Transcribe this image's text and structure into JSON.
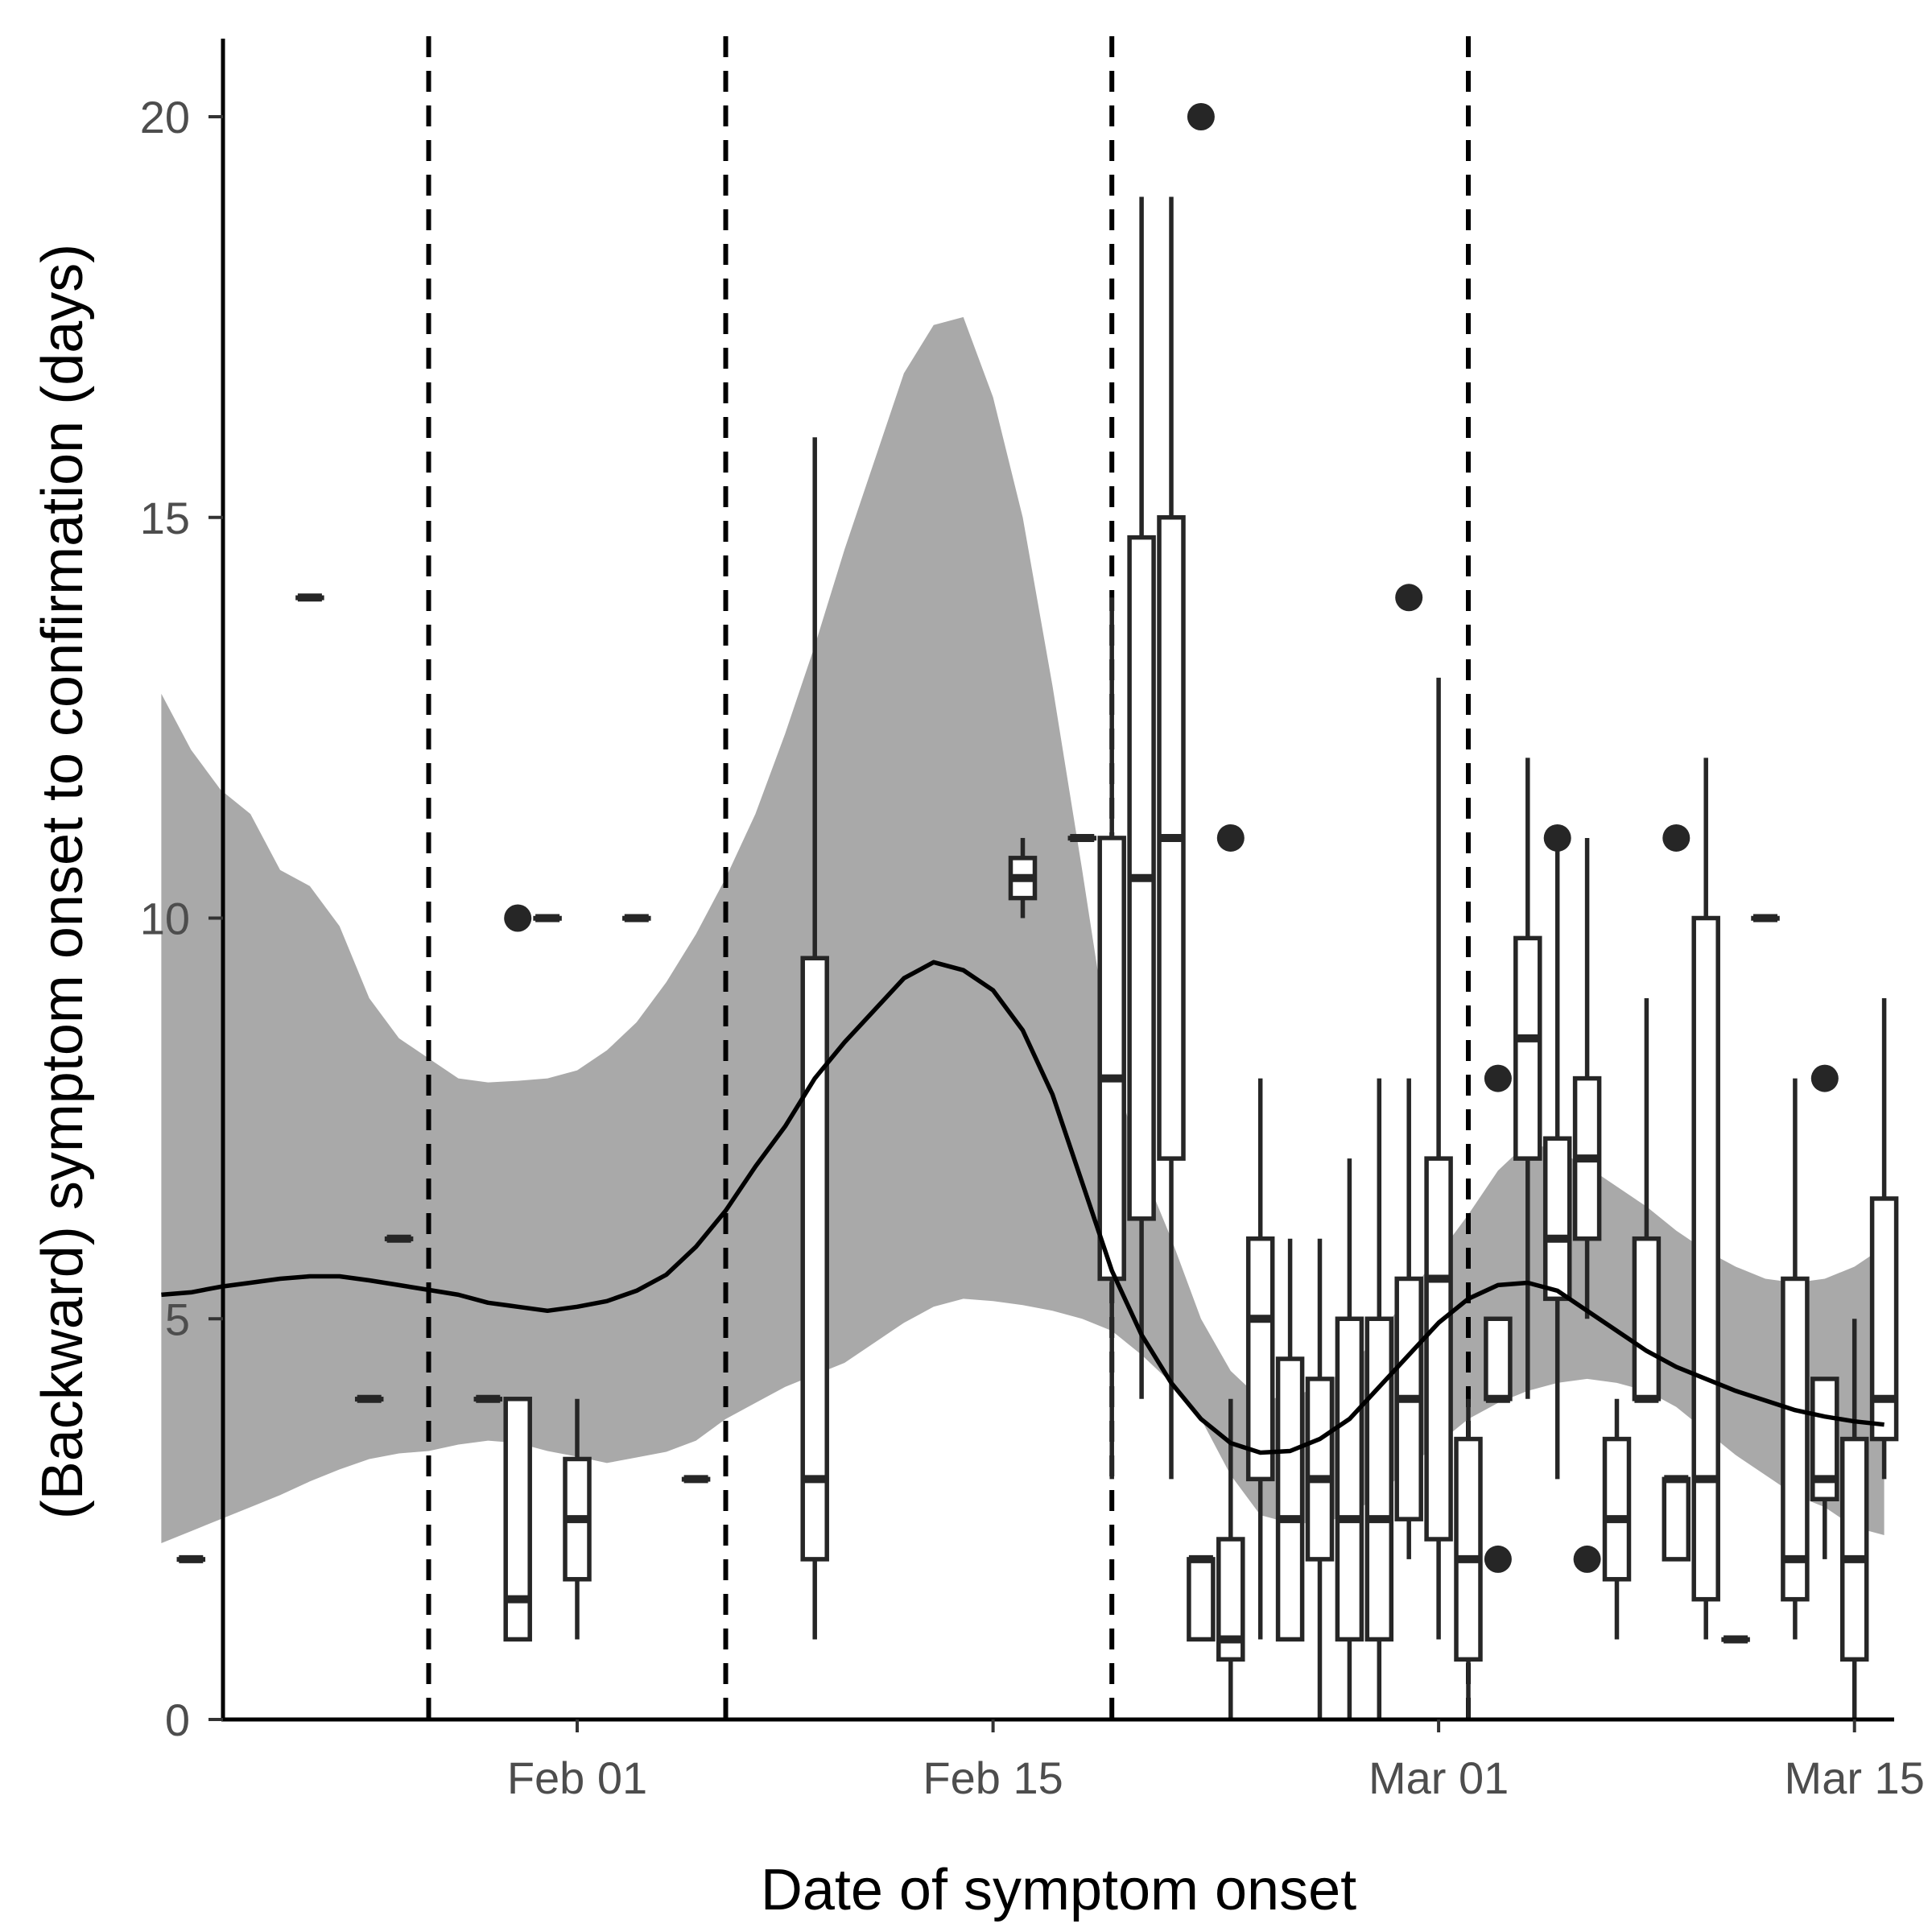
{
  "chart_data": {
    "type": "boxplot",
    "title": "",
    "xlabel": "Date of symptom onset",
    "ylabel": "(Backward) symptom onset to confirmation (days)",
    "xlim": [
      "2020-01-18",
      "2020-03-16"
    ],
    "ylim": [
      0,
      21
    ],
    "x_ticks": [
      {
        "date": "2020-02-01",
        "label": "Feb 01"
      },
      {
        "date": "2020-02-15",
        "label": "Feb 15"
      },
      {
        "date": "2020-03-01",
        "label": "Mar 01"
      },
      {
        "date": "2020-03-15",
        "label": "Mar 15"
      }
    ],
    "y_ticks": [
      {
        "value": 0,
        "label": "0"
      },
      {
        "value": 5,
        "label": "5"
      },
      {
        "value": 10,
        "label": "10"
      },
      {
        "value": 15,
        "label": "15"
      },
      {
        "value": 20,
        "label": "20"
      }
    ],
    "grid": false,
    "vlines": [
      "2020-01-27",
      "2020-02-06",
      "2020-02-19",
      "2020-03-02"
    ],
    "boxes": [
      {
        "date": "2020-01-19",
        "lo": 2,
        "q1": 2,
        "med": 2,
        "q3": 2,
        "hi": 2
      },
      {
        "date": "2020-01-23",
        "lo": 14,
        "q1": 14,
        "med": 14,
        "q3": 14,
        "hi": 14
      },
      {
        "date": "2020-01-25",
        "lo": 4,
        "q1": 4,
        "med": 4,
        "q3": 4,
        "hi": 4
      },
      {
        "date": "2020-01-26",
        "lo": 6,
        "q1": 6,
        "med": 6,
        "q3": 6,
        "hi": 6
      },
      {
        "date": "2020-01-29",
        "lo": 4,
        "q1": 4,
        "med": 4,
        "q3": 4,
        "hi": 4
      },
      {
        "date": "2020-01-30",
        "lo": 1,
        "q1": 1,
        "med": 1.5,
        "q3": 4,
        "hi": 4,
        "outliers": [
          10
        ]
      },
      {
        "date": "2020-01-31",
        "lo": 10,
        "q1": 10,
        "med": 10,
        "q3": 10,
        "hi": 10
      },
      {
        "date": "2020-02-01",
        "lo": 1,
        "q1": 1.75,
        "med": 2.5,
        "q3": 3.25,
        "hi": 4
      },
      {
        "date": "2020-02-03",
        "lo": 10,
        "q1": 10,
        "med": 10,
        "q3": 10,
        "hi": 10
      },
      {
        "date": "2020-02-05",
        "lo": 3,
        "q1": 3,
        "med": 3,
        "q3": 3,
        "hi": 3
      },
      {
        "date": "2020-02-09",
        "lo": 1,
        "q1": 2,
        "med": 3,
        "q3": 9.5,
        "hi": 16
      },
      {
        "date": "2020-02-16",
        "lo": 10,
        "q1": 10.25,
        "med": 10.5,
        "q3": 10.75,
        "hi": 11
      },
      {
        "date": "2020-02-18",
        "lo": 11,
        "q1": 11,
        "med": 11,
        "q3": 11,
        "hi": 11
      },
      {
        "date": "2020-02-19",
        "lo": 3,
        "q1": 5.5,
        "med": 8,
        "q3": 11,
        "hi": 14
      },
      {
        "date": "2020-02-20",
        "lo": 4,
        "q1": 6.25,
        "med": 10.5,
        "q3": 14.75,
        "hi": 19
      },
      {
        "date": "2020-02-21",
        "lo": 3,
        "q1": 7,
        "med": 11,
        "q3": 15,
        "hi": 19
      },
      {
        "date": "2020-02-22",
        "lo": 1,
        "q1": 1,
        "med": 2,
        "q3": 2,
        "hi": 2,
        "outliers": [
          20
        ]
      },
      {
        "date": "2020-02-23",
        "lo": 0,
        "q1": 0.75,
        "med": 1,
        "q3": 2.25,
        "hi": 4,
        "outliers": [
          11
        ]
      },
      {
        "date": "2020-02-24",
        "lo": 1,
        "q1": 3,
        "med": 5,
        "q3": 6,
        "hi": 8
      },
      {
        "date": "2020-02-25",
        "lo": 1,
        "q1": 1,
        "med": 2.5,
        "q3": 4.5,
        "hi": 6
      },
      {
        "date": "2020-02-26",
        "lo": 0,
        "q1": 2,
        "med": 3,
        "q3": 4.25,
        "hi": 6
      },
      {
        "date": "2020-02-27",
        "lo": 0,
        "q1": 1,
        "med": 2.5,
        "q3": 5,
        "hi": 7
      },
      {
        "date": "2020-02-28",
        "lo": 0,
        "q1": 1,
        "med": 2.5,
        "q3": 5,
        "hi": 8
      },
      {
        "date": "2020-02-29",
        "lo": 2,
        "q1": 2.5,
        "med": 4,
        "q3": 5.5,
        "hi": 8,
        "outliers": [
          14
        ]
      },
      {
        "date": "2020-03-01",
        "lo": 1,
        "q1": 2.25,
        "med": 5.5,
        "q3": 7,
        "hi": 13
      },
      {
        "date": "2020-03-02",
        "lo": 0,
        "q1": 0.75,
        "med": 2,
        "q3": 3.5,
        "hi": 4
      },
      {
        "date": "2020-03-03",
        "lo": 4,
        "q1": 4,
        "med": 4,
        "q3": 5,
        "hi": 5,
        "outliers": [
          8,
          2
        ]
      },
      {
        "date": "2020-03-04",
        "lo": 4,
        "q1": 7,
        "med": 8.5,
        "q3": 9.75,
        "hi": 12
      },
      {
        "date": "2020-03-05",
        "lo": 3,
        "q1": 5.25,
        "med": 6,
        "q3": 7.25,
        "hi": 11,
        "outliers": [
          11
        ]
      },
      {
        "date": "2020-03-06",
        "lo": 5,
        "q1": 6,
        "med": 7,
        "q3": 8,
        "hi": 11,
        "outliers": [
          2
        ]
      },
      {
        "date": "2020-03-07",
        "lo": 1,
        "q1": 1.75,
        "med": 2.5,
        "q3": 3.5,
        "hi": 4
      },
      {
        "date": "2020-03-08",
        "lo": 4,
        "q1": 4,
        "med": 4,
        "q3": 6,
        "hi": 9
      },
      {
        "date": "2020-03-09",
        "lo": 2,
        "q1": 2,
        "med": 3,
        "q3": 3,
        "hi": 3,
        "outliers": [
          11
        ]
      },
      {
        "date": "2020-03-10",
        "lo": 1,
        "q1": 1.5,
        "med": 3,
        "q3": 10,
        "hi": 12
      },
      {
        "date": "2020-03-11",
        "lo": 1,
        "q1": 1,
        "med": 1,
        "q3": 1,
        "hi": 1
      },
      {
        "date": "2020-03-12",
        "lo": 10,
        "q1": 10,
        "med": 10,
        "q3": 10,
        "hi": 10
      },
      {
        "date": "2020-03-13",
        "lo": 1,
        "q1": 1.5,
        "med": 2,
        "q3": 5.5,
        "hi": 8
      },
      {
        "date": "2020-03-14",
        "lo": 2,
        "q1": 2.75,
        "med": 3,
        "q3": 4.25,
        "hi": 4.25,
        "outliers": [
          8
        ]
      },
      {
        "date": "2020-03-15",
        "lo": 0,
        "q1": 0.75,
        "med": 2,
        "q3": 3.5,
        "hi": 5
      },
      {
        "date": "2020-03-16",
        "lo": 3,
        "q1": 3.5,
        "med": 4,
        "q3": 6.5,
        "hi": 9
      }
    ],
    "smooth": {
      "x": [
        "2020-01-18",
        "2020-01-19",
        "2020-01-20",
        "2020-01-21",
        "2020-01-22",
        "2020-01-23",
        "2020-01-24",
        "2020-01-25",
        "2020-01-26",
        "2020-01-27",
        "2020-01-28",
        "2020-01-29",
        "2020-01-30",
        "2020-01-31",
        "2020-02-01",
        "2020-02-02",
        "2020-02-03",
        "2020-02-04",
        "2020-02-05",
        "2020-02-06",
        "2020-02-07",
        "2020-02-08",
        "2020-02-09",
        "2020-02-10",
        "2020-02-11",
        "2020-02-12",
        "2020-02-13",
        "2020-02-14",
        "2020-02-15",
        "2020-02-16",
        "2020-02-17",
        "2020-02-18",
        "2020-02-19",
        "2020-02-20",
        "2020-02-21",
        "2020-02-22",
        "2020-02-23",
        "2020-02-24",
        "2020-02-25",
        "2020-02-26",
        "2020-02-27",
        "2020-02-28",
        "2020-02-29",
        "2020-03-01",
        "2020-03-02",
        "2020-03-03",
        "2020-03-04",
        "2020-03-05",
        "2020-03-06",
        "2020-03-07",
        "2020-03-08",
        "2020-03-09",
        "2020-03-10",
        "2020-03-11",
        "2020-03-12",
        "2020-03-13",
        "2020-03-14",
        "2020-03-15",
        "2020-03-16"
      ],
      "y": [
        5.3,
        5.33,
        5.4,
        5.45,
        5.5,
        5.53,
        5.53,
        5.48,
        5.42,
        5.36,
        5.3,
        5.2,
        5.15,
        5.1,
        5.15,
        5.22,
        5.35,
        5.55,
        5.9,
        6.35,
        6.9,
        7.4,
        8.0,
        8.45,
        8.85,
        9.25,
        9.45,
        9.35,
        9.1,
        8.6,
        7.8,
        6.7,
        5.6,
        4.8,
        4.2,
        3.75,
        3.45,
        3.33,
        3.35,
        3.5,
        3.75,
        4.15,
        4.55,
        4.95,
        5.25,
        5.42,
        5.45,
        5.35,
        5.1,
        4.85,
        4.6,
        4.4,
        4.25,
        4.1,
        3.98,
        3.86,
        3.78,
        3.72,
        3.68
      ],
      "lower": [
        2.2,
        2.35,
        2.5,
        2.65,
        2.8,
        2.97,
        3.12,
        3.25,
        3.32,
        3.35,
        3.43,
        3.48,
        3.45,
        3.35,
        3.28,
        3.2,
        3.27,
        3.34,
        3.48,
        3.75,
        3.95,
        4.15,
        4.3,
        4.45,
        4.7,
        4.95,
        5.15,
        5.25,
        5.22,
        5.17,
        5.1,
        5.0,
        4.85,
        4.55,
        4.2,
        3.75,
        3.05,
        2.55,
        2.45,
        2.45,
        2.55,
        2.8,
        3.15,
        3.45,
        3.75,
        3.95,
        4.1,
        4.2,
        4.25,
        4.2,
        4.1,
        3.9,
        3.6,
        3.3,
        3.05,
        2.8,
        2.65,
        2.4,
        2.3
      ],
      "upper": [
        12.8,
        12.1,
        11.6,
        11.3,
        10.6,
        10.4,
        9.9,
        9.0,
        8.5,
        8.25,
        8.0,
        7.95,
        7.97,
        8.0,
        8.1,
        8.35,
        8.7,
        9.2,
        9.8,
        10.5,
        11.3,
        12.3,
        13.4,
        14.6,
        15.7,
        16.8,
        17.4,
        17.5,
        16.5,
        15.0,
        12.9,
        10.6,
        8.2,
        6.9,
        6.0,
        5.0,
        4.35,
        4.0,
        4.02,
        4.15,
        4.4,
        4.8,
        5.3,
        5.8,
        6.3,
        6.85,
        7.2,
        7.1,
        6.9,
        6.65,
        6.4,
        6.1,
        5.85,
        5.65,
        5.5,
        5.45,
        5.5,
        5.65,
        5.9
      ]
    }
  }
}
